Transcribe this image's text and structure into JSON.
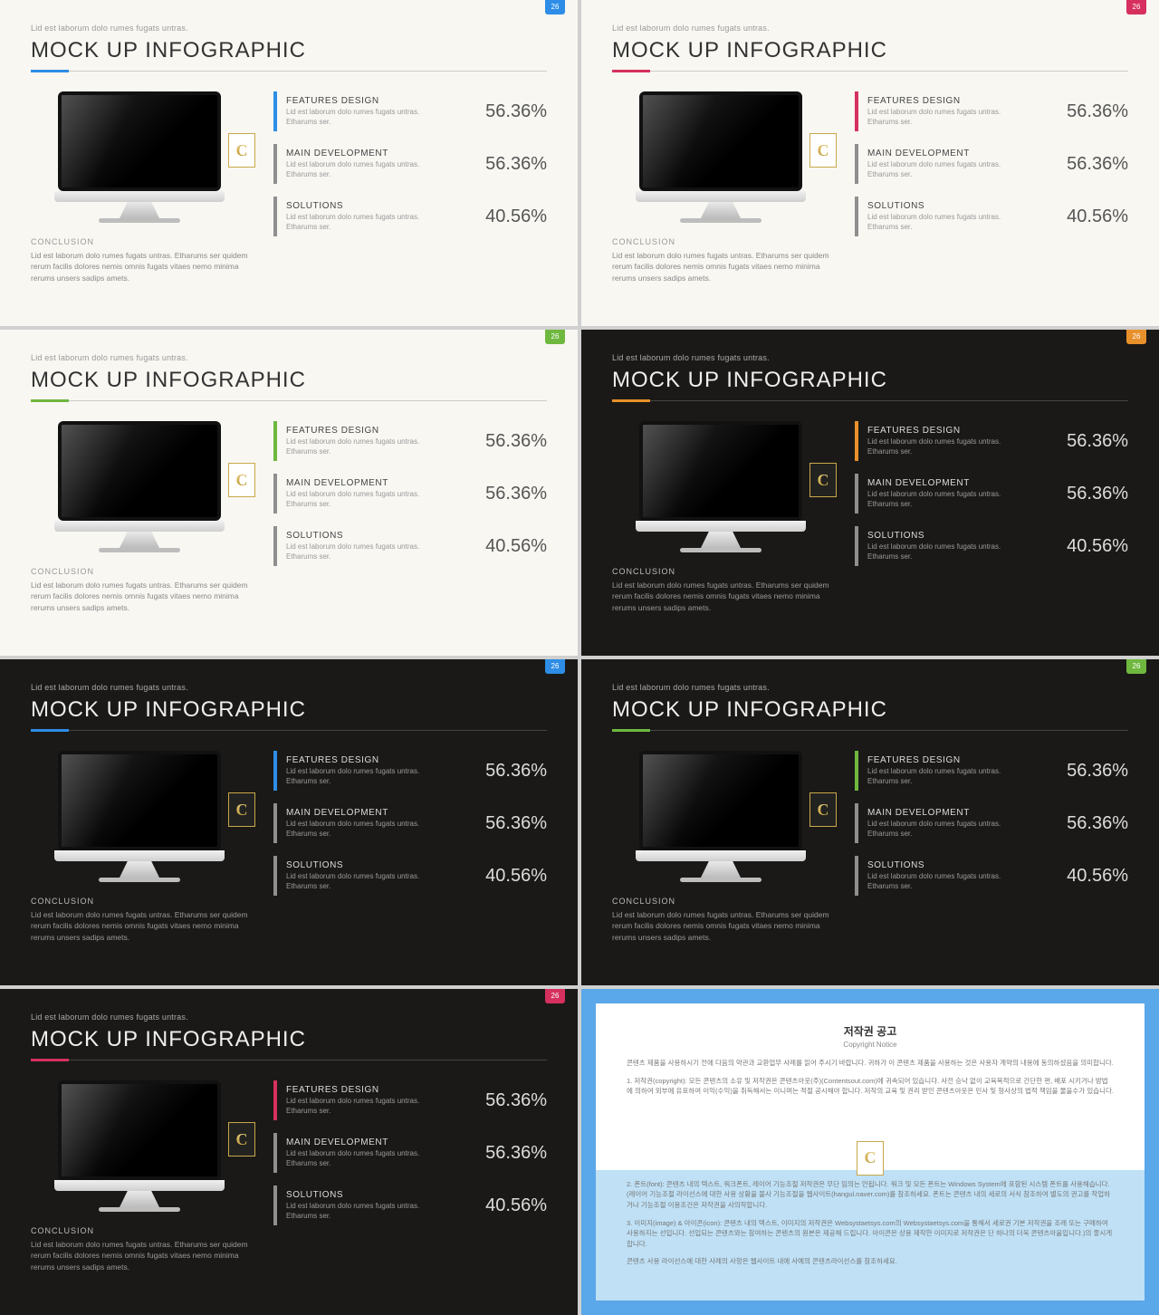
{
  "common": {
    "subtitle": "Lid est laborum dolo rumes fugats untras.",
    "title": "MOCK UP INFOGRAPHIC",
    "badge_number": "26",
    "logo_letter": "C",
    "conclusion": {
      "heading": "CONCLUSION",
      "body": "Lid est laborum dolo rumes fugats untras. Etharums ser quidem rerum facilis dolores nemis omnis fugats vitaes nemo minima rerums unsers sadips amets."
    },
    "stats": [
      {
        "heading": "FEATURES DESIGN",
        "body": "Lid est laborum dolo rumes fugats untras. Etharums ser.",
        "pct": "56.36%"
      },
      {
        "heading": "MAIN DEVELOPMENT",
        "body": "Lid est laborum dolo rumes fugats untras. Etharums ser.",
        "pct": "56.36%"
      },
      {
        "heading": "SOLUTIONS",
        "body": "Lid est laborum dolo rumes fugats untras. Etharums ser.",
        "pct": "40.56%"
      }
    ]
  },
  "slides": [
    {
      "theme": "light",
      "accent": "#2e8de6",
      "badge": "#2e8de6"
    },
    {
      "theme": "light",
      "accent": "#d6305f",
      "badge": "#d6305f"
    },
    {
      "theme": "light",
      "accent": "#6fb83f",
      "badge": "#6fb83f"
    },
    {
      "theme": "dark",
      "accent": "#e8902b",
      "badge": "#e8902b"
    },
    {
      "theme": "dark",
      "accent": "#2e8de6",
      "badge": "#2e8de6"
    },
    {
      "theme": "dark",
      "accent": "#6fb83f",
      "badge": "#6fb83f"
    },
    {
      "theme": "dark",
      "accent": "#d6305f",
      "badge": "#d6305f"
    }
  ],
  "copyright": {
    "title": "저작권 공고",
    "subtitle": "Copyright Notice",
    "p1": "콘텐츠 제품을 사용하시기 전에 다음의 약관과 교환업무 사례를 읽어 주시기 바랍니다. 귀하가 이 콘텐츠 제품을 사용하는 것은 사용자 계약의 내용에 동의하셨음을 의미합니다.",
    "p2": "1. 저작권(copyright): 모든 콘텐츠의 소유 및 저작권은 콘텐츠아웃(주)(Contentsout.com)에 귀속되어 있습니다. 사전 승낙 없이 교육목적으로 간단한 편, 배포 시키거나 방법에 의하여 외부에 유포하여 이익(수익)을 취득해서는 이니며는 적절 공시해야 합니다. 저작의 교육 및 권리 받인 콘텐츠아웃은 민사 및 형사상의 법적 책임을 물을수가 있습니다.",
    "p3": "2. 폰트(font): 콘텐츠 내의 텍스트, 워크폰트, 레이어 기능조절 저작권은 무단 임의는 안됩니다. 워크 및 모든 폰트는 Windows System에 포함된 시스템 폰트를 사용해습니다. (레이어 기능조절 라이선스에 대한 사용 상황을 몰사 기능조절을 웹사이트(hangul.naver.com)를 참조하세요. 폰트는 콘텐츠 내의 세로의 서식 참조하여 별도의 권고를 작업하거나 기능조절 이용조건은 저작권을 사의작합니다.",
    "p4": "3. 이미지(image) & 아이콘(icon): 콘텐츠 내의 텍스트, 이미지의 저작권은 Websystaetsys.com의 Websystaetsys.com을 통해서 세로권 기본 저작권을 조래 또는 구매하여 사용하지는 선입니다. 선입되는 콘텐츠와는 참여하는 콘텐츠의 원본은 제공해 드립니다. 아이콘은 상용 제작한 이미지로 저작권은 단 하나의 더욱 콘텐츠아울입니다.)의 좋시게 합니다.",
    "p5": "콘텐츠 사용 라이선스에 대한 사례의 사항은 웹사이트 내에 사예의 콘텐츠라이선스를 참조하세요."
  }
}
